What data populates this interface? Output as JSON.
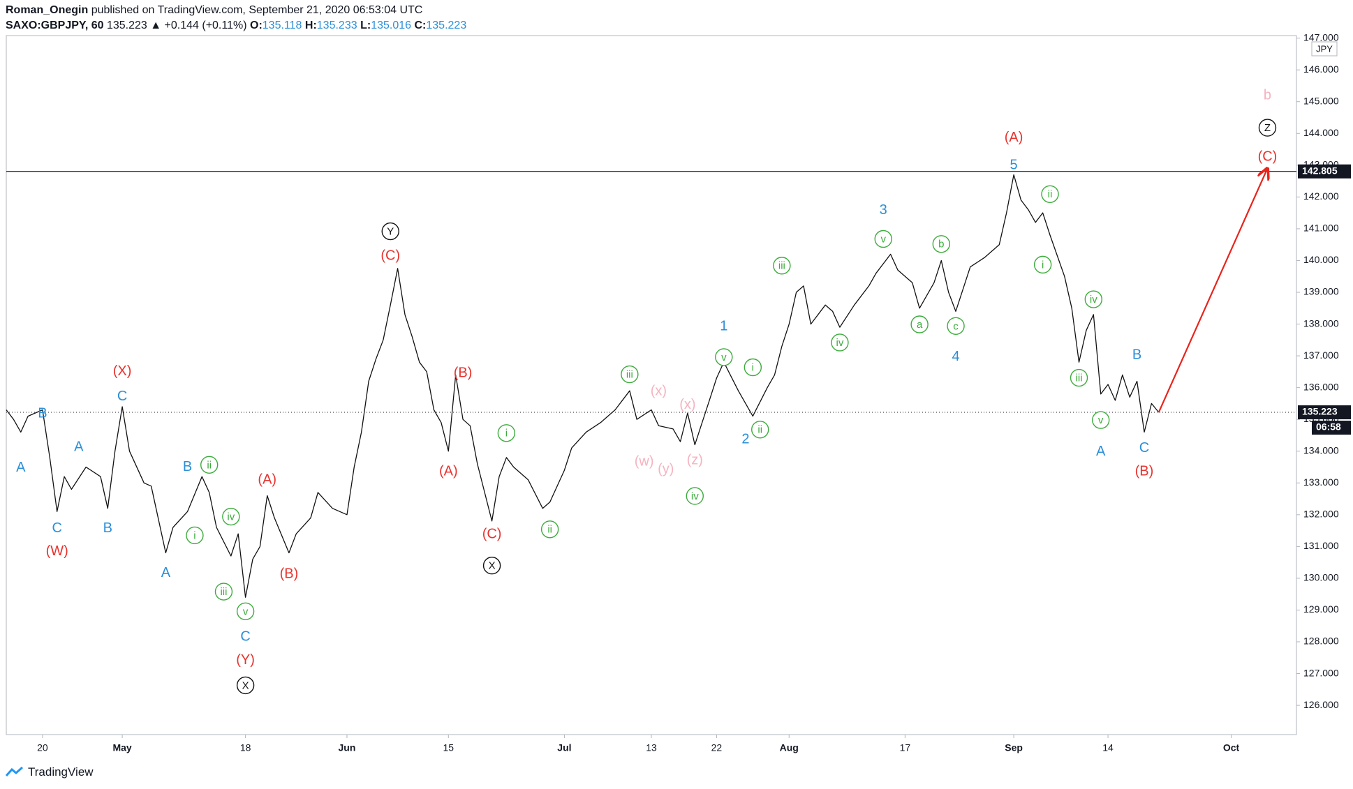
{
  "header": {
    "author": "Roman_Onegin",
    "published": "published on TradingView.com, September 21, 2020 06:53:04 UTC",
    "symbol": "SAXO:GBPJPY, 60",
    "price": "135.223",
    "change": "▲ +0.144 (+0.11%)",
    "ohlc": [
      {
        "label": "O:",
        "value": "135.118"
      },
      {
        "label": "H:",
        "value": "135.233"
      },
      {
        "label": "L:",
        "value": "135.016"
      },
      {
        "label": "C:",
        "value": "135.223"
      }
    ]
  },
  "footer": {
    "brand": "TradingView"
  },
  "chart_data": {
    "type": "line",
    "currency": "JPY",
    "xlim": [
      "04-15",
      "10-10"
    ],
    "ylim": [
      125.08,
      147.08
    ],
    "xticks": [
      {
        "value": "04-20",
        "label": "20"
      },
      {
        "value": "05-01",
        "label": "May"
      },
      {
        "value": "05-18",
        "label": "18"
      },
      {
        "value": "06-01",
        "label": "Jun"
      },
      {
        "value": "06-15",
        "label": "15"
      },
      {
        "value": "07-01",
        "label": "Jul"
      },
      {
        "value": "07-13",
        "label": "13"
      },
      {
        "value": "07-22",
        "label": "22"
      },
      {
        "value": "08-01",
        "label": "Aug"
      },
      {
        "value": "08-17",
        "label": "17"
      },
      {
        "value": "09-01",
        "label": "Sep"
      },
      {
        "value": "09-14",
        "label": "14"
      },
      {
        "value": "10-01",
        "label": "Oct"
      }
    ],
    "yticks": [
      {
        "value": 126,
        "label": "126.000"
      },
      {
        "value": 127,
        "label": "127.000"
      },
      {
        "value": 128,
        "label": "128.000"
      },
      {
        "value": 129,
        "label": "129.000"
      },
      {
        "value": 130,
        "label": "130.000"
      },
      {
        "value": 131,
        "label": "131.000"
      },
      {
        "value": 132,
        "label": "132.000"
      },
      {
        "value": 133,
        "label": "133.000"
      },
      {
        "value": 134,
        "label": "134.000"
      },
      {
        "value": 135,
        "label": "135.000"
      },
      {
        "value": 136,
        "label": "136.000"
      },
      {
        "value": 137,
        "label": "137.000"
      },
      {
        "value": 138,
        "label": "138.000"
      },
      {
        "value": 139,
        "label": "139.000"
      },
      {
        "value": 140,
        "label": "140.000"
      },
      {
        "value": 141,
        "label": "141.000"
      },
      {
        "value": 142,
        "label": "142.000"
      },
      {
        "value": 143,
        "label": "143.000"
      },
      {
        "value": 144,
        "label": "144.000"
      },
      {
        "value": 145,
        "label": "145.000"
      },
      {
        "value": 146,
        "label": "146.000"
      },
      {
        "value": 147,
        "label": "147.000"
      }
    ],
    "x": [
      "04-15",
      "04-16",
      "04-17",
      "04-18",
      "04-20",
      "04-21",
      "04-22",
      "04-23",
      "04-24",
      "04-26",
      "04-28",
      "04-29",
      "04-30",
      "05-01",
      "05-02",
      "05-04",
      "05-05",
      "05-07",
      "05-08",
      "05-10",
      "05-12",
      "05-13",
      "05-14",
      "05-16",
      "05-17",
      "05-18",
      "05-19",
      "05-20",
      "05-21",
      "05-22",
      "05-24",
      "05-25",
      "05-27",
      "05-28",
      "05-30",
      "06-01",
      "06-02",
      "06-03",
      "06-04",
      "06-05",
      "06-06",
      "06-07",
      "06-08",
      "06-09",
      "06-10",
      "06-11",
      "06-12",
      "06-13",
      "06-14",
      "06-15",
      "06-16",
      "06-17",
      "06-18",
      "06-19",
      "06-21",
      "06-22",
      "06-23",
      "06-24",
      "06-26",
      "06-28",
      "06-29",
      "07-01",
      "07-02",
      "07-04",
      "07-06",
      "07-08",
      "07-10",
      "07-11",
      "07-13",
      "07-14",
      "07-16",
      "07-17",
      "07-18",
      "07-19",
      "07-20",
      "07-21",
      "07-22",
      "07-23",
      "07-25",
      "07-27",
      "07-29",
      "07-30",
      "07-31",
      "08-01",
      "08-02",
      "08-03",
      "08-04",
      "08-06",
      "08-07",
      "08-08",
      "08-10",
      "08-12",
      "08-13",
      "08-15",
      "08-16",
      "08-18",
      "08-19",
      "08-21",
      "08-22",
      "08-23",
      "08-24",
      "08-26",
      "08-28",
      "08-30",
      "08-31",
      "09-01",
      "09-02",
      "09-03",
      "09-04",
      "09-05",
      "09-06",
      "09-08",
      "09-09",
      "09-10",
      "09-11",
      "09-12",
      "09-13",
      "09-14",
      "09-15",
      "09-16",
      "09-17",
      "09-18",
      "09-19",
      "09-20",
      "09-21"
    ],
    "series": [
      {
        "name": "SAXO:GBPJPY",
        "color": "#111111",
        "values": [
          135.3,
          135.0,
          134.6,
          135.1,
          135.3,
          133.8,
          132.1,
          133.2,
          132.8,
          133.5,
          133.2,
          132.2,
          134.0,
          135.4,
          134.0,
          133.0,
          132.9,
          130.8,
          131.6,
          132.1,
          133.2,
          132.7,
          131.6,
          130.7,
          131.4,
          129.4,
          130.6,
          131.0,
          132.6,
          131.9,
          130.8,
          131.4,
          131.9,
          132.7,
          132.2,
          132.0,
          133.5,
          134.6,
          136.2,
          136.9,
          137.5,
          138.6,
          139.75,
          138.3,
          137.6,
          136.8,
          136.5,
          135.3,
          134.9,
          134.0,
          136.4,
          135.0,
          134.8,
          133.6,
          131.8,
          133.2,
          133.8,
          133.5,
          133.1,
          132.2,
          132.4,
          133.4,
          134.1,
          134.6,
          134.9,
          135.3,
          135.9,
          135.0,
          135.3,
          134.8,
          134.7,
          134.3,
          135.2,
          134.2,
          134.9,
          135.6,
          136.3,
          136.8,
          135.9,
          135.1,
          136.0,
          136.4,
          137.3,
          138.0,
          139.0,
          139.2,
          138.0,
          138.6,
          138.4,
          137.9,
          138.6,
          139.2,
          139.6,
          140.2,
          139.7,
          139.3,
          138.5,
          139.3,
          140.0,
          139.0,
          138.4,
          139.8,
          140.1,
          140.5,
          141.5,
          142.7,
          141.9,
          141.6,
          141.2,
          141.5,
          140.8,
          139.5,
          138.5,
          136.8,
          137.8,
          138.3,
          135.8,
          136.1,
          135.6,
          136.4,
          135.7,
          136.2,
          134.6,
          135.5,
          135.223
        ]
      }
    ],
    "levels": [
      142.805
    ],
    "last_price": 135.223,
    "countdown": "06:58",
    "arrow": {
      "color": "#e8241c",
      "from": {
        "x": "09-21",
        "y": 135.223
      },
      "to": {
        "x": "10-06",
        "y": 142.9
      }
    },
    "annotations": [
      {
        "text": "A",
        "x": "04-17",
        "y": 133.49,
        "color": "#2a8fd8"
      },
      {
        "text": "B",
        "x": "04-20",
        "y": 135.2,
        "color": "#2a8fd8"
      },
      {
        "text": "C",
        "x": "04-22",
        "y": 131.59,
        "color": "#2a8fd8"
      },
      {
        "text": "(W)",
        "x": "04-22",
        "y": 130.86,
        "color": "#e8322e"
      },
      {
        "text": "A",
        "x": "04-25",
        "y": 134.14,
        "color": "#2a8fd8"
      },
      {
        "text": "B",
        "x": "04-29",
        "y": 131.59,
        "color": "#2a8fd8"
      },
      {
        "text": "C",
        "x": "05-01",
        "y": 135.74,
        "color": "#2a8fd8"
      },
      {
        "text": "(X)",
        "x": "05-01",
        "y": 136.53,
        "color": "#e8322e"
      },
      {
        "text": "A",
        "x": "05-07",
        "y": 130.18,
        "color": "#2a8fd8"
      },
      {
        "text": "B",
        "x": "05-10",
        "y": 133.52,
        "color": "#2a8fd8"
      },
      {
        "text": "ii",
        "x": "05-13",
        "y": 133.57,
        "color": "#3cac3c",
        "circled": true
      },
      {
        "text": "i",
        "x": "05-11",
        "y": 131.35,
        "color": "#3cac3c",
        "circled": true
      },
      {
        "text": "iv",
        "x": "05-16",
        "y": 131.94,
        "color": "#3cac3c",
        "circled": true
      },
      {
        "text": "iii",
        "x": "05-15",
        "y": 129.58,
        "color": "#3cac3c",
        "circled": true
      },
      {
        "text": "v",
        "x": "05-18",
        "y": 128.96,
        "color": "#3cac3c",
        "circled": true
      },
      {
        "text": "C",
        "x": "05-18",
        "y": 128.17,
        "color": "#2a8fd8"
      },
      {
        "text": "(Y)",
        "x": "05-18",
        "y": 127.44,
        "color": "#e8322e"
      },
      {
        "text": "X",
        "x": "05-18",
        "y": 126.63,
        "color": "#111111",
        "circled": true
      },
      {
        "text": "(A)",
        "x": "05-21",
        "y": 133.11,
        "color": "#e8322e"
      },
      {
        "text": "(B)",
        "x": "05-24",
        "y": 130.15,
        "color": "#e8322e"
      },
      {
        "text": "Y",
        "x": "06-07",
        "y": 140.92,
        "color": "#111111",
        "circled": true
      },
      {
        "text": "(C)",
        "x": "06-07",
        "y": 140.16,
        "color": "#e8322e"
      },
      {
        "text": "(B)",
        "x": "06-17",
        "y": 136.47,
        "color": "#e8322e"
      },
      {
        "text": "(A)",
        "x": "06-15",
        "y": 133.38,
        "color": "#e8322e"
      },
      {
        "text": "(C)",
        "x": "06-21",
        "y": 131.4,
        "color": "#e8322e"
      },
      {
        "text": "X",
        "x": "06-21",
        "y": 130.4,
        "color": "#111111",
        "circled": true
      },
      {
        "text": "i",
        "x": "06-23",
        "y": 134.57,
        "color": "#3cac3c",
        "circled": true
      },
      {
        "text": "ii",
        "x": "06-29",
        "y": 131.54,
        "color": "#3cac3c",
        "circled": true
      },
      {
        "text": "iii",
        "x": "07-10",
        "y": 136.42,
        "color": "#3cac3c",
        "circled": true
      },
      {
        "text": "(x)",
        "x": "07-14",
        "y": 135.9,
        "color": "#f5b3c0"
      },
      {
        "text": "(w)",
        "x": "07-12",
        "y": 133.68,
        "color": "#f5b3c0"
      },
      {
        "text": "(y)",
        "x": "07-15",
        "y": 133.44,
        "color": "#f5b3c0"
      },
      {
        "text": "(x)",
        "x": "07-18",
        "y": 135.47,
        "color": "#f5b3c0"
      },
      {
        "text": "(z)",
        "x": "07-19",
        "y": 133.73,
        "color": "#f5b3c0"
      },
      {
        "text": "iv",
        "x": "07-19",
        "y": 132.59,
        "color": "#3cac3c",
        "circled": true
      },
      {
        "text": "v",
        "x": "07-23",
        "y": 136.96,
        "color": "#3cac3c",
        "circled": true
      },
      {
        "text": "1",
        "x": "07-23",
        "y": 137.94,
        "color": "#2a8fd8"
      },
      {
        "text": "i",
        "x": "07-27",
        "y": 136.64,
        "color": "#3cac3c",
        "circled": true
      },
      {
        "text": "ii",
        "x": "07-28",
        "y": 134.68,
        "color": "#3cac3c",
        "circled": true
      },
      {
        "text": "2",
        "x": "07-26",
        "y": 134.38,
        "color": "#2a8fd8"
      },
      {
        "text": "iii",
        "x": "07-31",
        "y": 139.84,
        "color": "#3cac3c",
        "circled": true
      },
      {
        "text": "iv",
        "x": "08-08",
        "y": 137.42,
        "color": "#3cac3c",
        "circled": true
      },
      {
        "text": "v",
        "x": "08-14",
        "y": 140.68,
        "color": "#3cac3c",
        "circled": true
      },
      {
        "text": "3",
        "x": "08-14",
        "y": 141.6,
        "color": "#2a8fd8"
      },
      {
        "text": "a",
        "x": "08-19",
        "y": 137.99,
        "color": "#3cac3c",
        "circled": true
      },
      {
        "text": "b",
        "x": "08-22",
        "y": 140.52,
        "color": "#3cac3c",
        "circled": true
      },
      {
        "text": "c",
        "x": "08-24",
        "y": 137.94,
        "color": "#3cac3c",
        "circled": true
      },
      {
        "text": "4",
        "x": "08-24",
        "y": 136.99,
        "color": "#2a8fd8"
      },
      {
        "text": "5",
        "x": "09-01",
        "y": 143.01,
        "color": "#2a8fd8"
      },
      {
        "text": "(A)",
        "x": "09-01",
        "y": 143.88,
        "color": "#e8322e"
      },
      {
        "text": "ii",
        "x": "09-06",
        "y": 142.09,
        "color": "#3cac3c",
        "circled": true
      },
      {
        "text": "i",
        "x": "09-05",
        "y": 139.87,
        "color": "#3cac3c",
        "circled": true
      },
      {
        "text": "iv",
        "x": "09-12",
        "y": 138.78,
        "color": "#3cac3c",
        "circled": true
      },
      {
        "text": "iii",
        "x": "09-10",
        "y": 136.31,
        "color": "#3cac3c",
        "circled": true
      },
      {
        "text": "v",
        "x": "09-13",
        "y": 134.98,
        "color": "#3cac3c",
        "circled": true
      },
      {
        "text": "A",
        "x": "09-13",
        "y": 134.0,
        "color": "#2a8fd8"
      },
      {
        "text": "B",
        "x": "09-18",
        "y": 137.04,
        "color": "#2a8fd8"
      },
      {
        "text": "C",
        "x": "09-19",
        "y": 134.11,
        "color": "#2a8fd8"
      },
      {
        "text": "(B)",
        "x": "09-19",
        "y": 133.38,
        "color": "#e8322e"
      },
      {
        "text": "b",
        "x": "10-06",
        "y": 145.21,
        "color": "#f5b3c0"
      },
      {
        "text": "Z",
        "x": "10-06",
        "y": 144.18,
        "color": "#111111",
        "circled": true
      },
      {
        "text": "(C)",
        "x": "10-06",
        "y": 143.28,
        "color": "#e8322e"
      }
    ]
  }
}
